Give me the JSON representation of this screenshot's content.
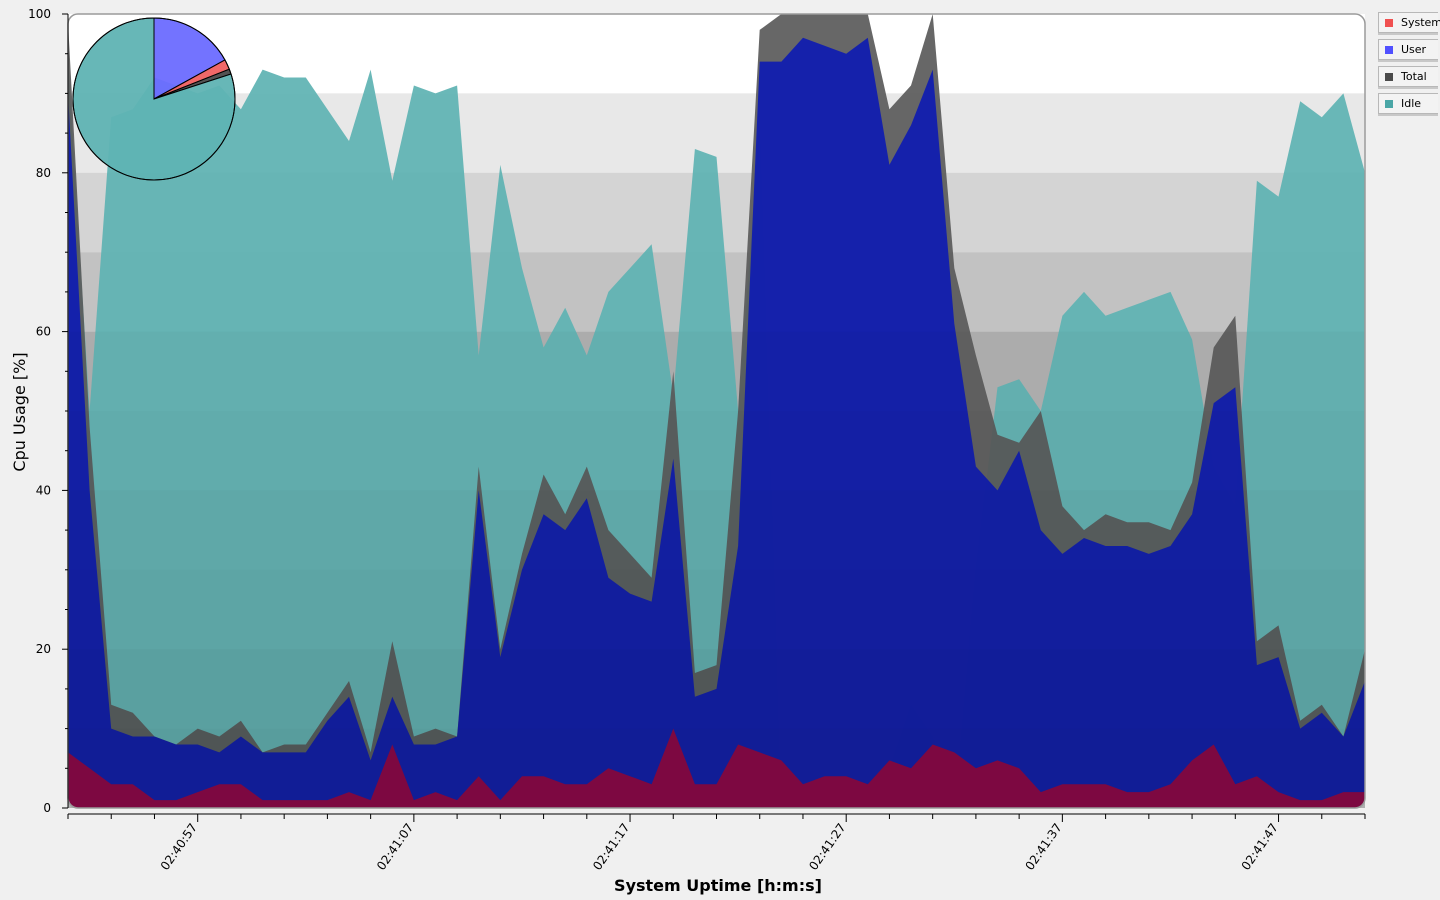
{
  "chart_data": {
    "type": "area",
    "stacked": false,
    "xlabel": "System Uptime [h:m:s]",
    "ylabel": "Cpu Usage [%]",
    "ylim": [
      0,
      100
    ],
    "yticks": [
      0,
      20,
      40,
      60,
      80,
      100
    ],
    "x_start": "02:40:51",
    "x_step_seconds": 1,
    "xtick_labels": [
      {
        "seconds": 6,
        "label": "02:40:57"
      },
      {
        "seconds": 16,
        "label": "02:41:07"
      },
      {
        "seconds": 26,
        "label": "02:41:17"
      },
      {
        "seconds": 36,
        "label": "02:41:27"
      },
      {
        "seconds": 46,
        "label": "02:41:37"
      },
      {
        "seconds": 56,
        "label": "02:41:47"
      }
    ],
    "grid": true,
    "legend_position": "right",
    "series": [
      {
        "name": "Idle",
        "color": "#5fb3b3",
        "values": [
          94,
          50,
          87,
          88,
          92,
          91,
          90,
          91,
          88,
          93,
          92,
          92,
          88,
          84,
          93,
          79,
          91,
          90,
          91,
          57,
          81,
          68,
          58,
          63,
          57,
          65,
          68,
          71,
          52,
          83,
          82,
          50,
          86,
          0,
          0,
          0,
          0,
          0,
          5,
          13,
          9,
          0,
          30,
          53,
          54,
          50,
          62,
          65,
          62,
          63,
          64,
          65,
          59,
          43,
          38,
          79,
          77,
          89,
          87,
          90,
          80
        ]
      },
      {
        "name": "Total",
        "color": "#5a5a5a",
        "values": [
          99,
          48,
          13,
          12,
          9,
          8,
          10,
          9,
          11,
          7,
          8,
          8,
          12,
          16,
          7,
          21,
          9,
          10,
          9,
          43,
          20,
          32,
          42,
          37,
          43,
          35,
          32,
          29,
          55,
          17,
          18,
          50,
          98,
          100,
          100,
          100,
          100,
          100,
          88,
          91,
          100,
          68,
          57,
          47,
          46,
          50,
          38,
          35,
          37,
          36,
          36,
          35,
          41,
          58,
          62,
          21,
          23,
          11,
          13,
          9,
          20
        ]
      },
      {
        "name": "User",
        "color": "#0a18b5",
        "values": [
          90,
          40,
          10,
          9,
          9,
          8,
          8,
          7,
          9,
          7,
          7,
          7,
          11,
          14,
          6,
          14,
          8,
          8,
          9,
          40,
          19,
          30,
          37,
          35,
          39,
          29,
          27,
          26,
          44,
          14,
          15,
          33,
          94,
          94,
          97,
          96,
          95,
          97,
          81,
          86,
          93,
          61,
          43,
          40,
          45,
          35,
          32,
          34,
          33,
          33,
          32,
          33,
          37,
          51,
          53,
          18,
          19,
          10,
          12,
          9,
          16
        ]
      },
      {
        "name": "System",
        "color": "#960a46",
        "values": [
          7,
          5,
          3,
          3,
          1,
          1,
          2,
          3,
          3,
          1,
          1,
          1,
          1,
          2,
          1,
          8,
          1,
          2,
          1,
          4,
          1,
          4,
          4,
          3,
          3,
          5,
          4,
          3,
          10,
          3,
          3,
          8,
          7,
          6,
          3,
          4,
          4,
          3,
          6,
          5,
          8,
          7,
          5,
          6,
          5,
          2,
          3,
          3,
          3,
          2,
          2,
          3,
          6,
          8,
          3,
          4,
          2,
          1,
          1,
          2,
          2
        ]
      }
    ],
    "pie": {
      "slices": [
        {
          "name": "User",
          "color": "#6b6bff",
          "value": 17
        },
        {
          "name": "System",
          "color": "#f06060",
          "value": 2
        },
        {
          "name": "Total",
          "color": "#4a4a4a",
          "value": 1
        },
        {
          "name": "Idle",
          "color": "#5fb3b3",
          "value": 80
        }
      ]
    }
  },
  "legend": [
    {
      "label": "System",
      "color": "#f05050"
    },
    {
      "label": "User",
      "color": "#5050ff"
    },
    {
      "label": "Total",
      "color": "#4a4a4a"
    },
    {
      "label": "Idle",
      "color": "#4aa6a6"
    }
  ]
}
